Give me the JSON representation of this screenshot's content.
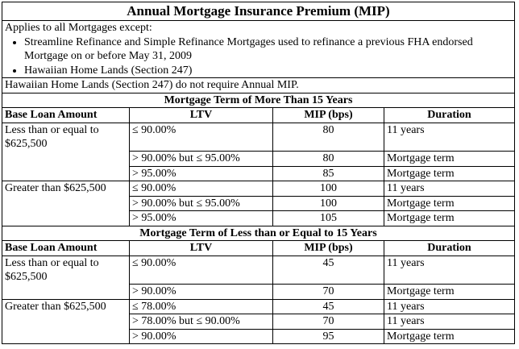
{
  "title": "Annual Mortgage Insurance Premium (MIP)",
  "intro": {
    "lead": "Applies to all Mortgages except:",
    "bullets": [
      "Streamline Refinance and Simple Refinance Mortgages used to refinance a previous FHA endorsed Mortgage on or before May 31, 2009",
      "Hawaiian Home Lands (Section 247)"
    ],
    "note": "Hawaiian Home Lands (Section 247) do not require Annual MIP."
  },
  "columns": {
    "base": "Base Loan Amount",
    "ltv": "LTV",
    "mip": "MIP (bps)",
    "duration": "Duration"
  },
  "sections": [
    {
      "heading": "Mortgage Term of More Than 15 Years",
      "groups": [
        {
          "base": "Less than or equal to $625,500",
          "rows": [
            {
              "ltv": "≤ 90.00%",
              "mip": "80",
              "duration": "11 years"
            },
            {
              "ltv": "> 90.00% but ≤ 95.00%",
              "mip": "80",
              "duration": "Mortgage term"
            },
            {
              "ltv": "> 95.00%",
              "mip": "85",
              "duration": "Mortgage term"
            }
          ]
        },
        {
          "base": "Greater than $625,500",
          "rows": [
            {
              "ltv": "≤ 90.00%",
              "mip": "100",
              "duration": "11 years"
            },
            {
              "ltv": "> 90.00% but ≤ 95.00%",
              "mip": "100",
              "duration": "Mortgage term"
            },
            {
              "ltv": "> 95.00%",
              "mip": "105",
              "duration": "Mortgage term"
            }
          ]
        }
      ]
    },
    {
      "heading": "Mortgage Term of Less than or Equal to 15 Years",
      "groups": [
        {
          "base": "Less than or equal to $625,500",
          "rows": [
            {
              "ltv": "≤ 90.00%",
              "mip": "45",
              "duration": "11 years"
            },
            {
              "ltv": "> 90.00%",
              "mip": "70",
              "duration": "Mortgage term"
            }
          ]
        },
        {
          "base": "Greater than $625,500",
          "rows": [
            {
              "ltv": "≤ 78.00%",
              "mip": "45",
              "duration": "11 years"
            },
            {
              "ltv": "> 78.00% but ≤ 90.00%",
              "mip": "70",
              "duration": "11 years"
            },
            {
              "ltv": "> 90.00%",
              "mip": "95",
              "duration": "Mortgage term"
            }
          ]
        }
      ]
    }
  ]
}
